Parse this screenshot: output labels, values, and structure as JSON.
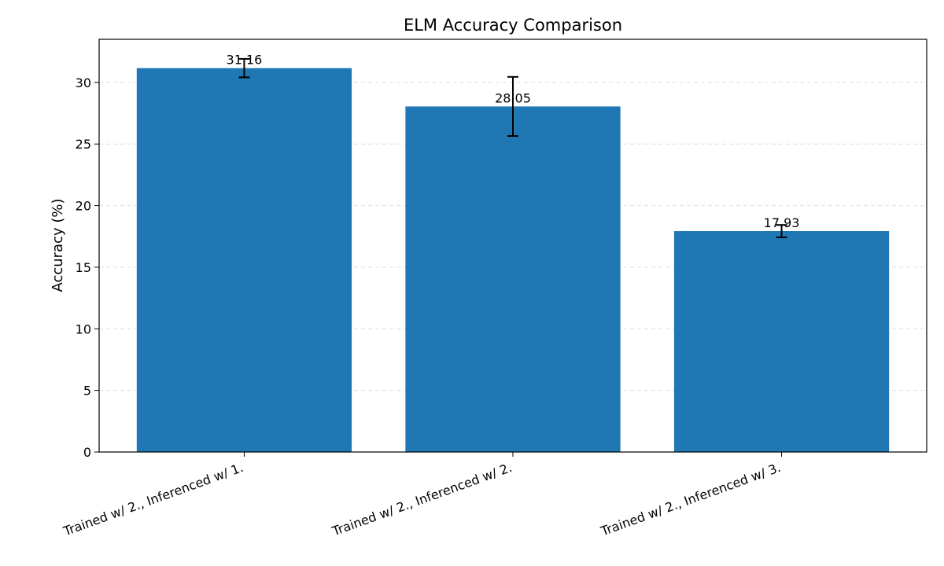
{
  "chart_data": {
    "type": "bar",
    "title": "ELM Accuracy Comparison",
    "xlabel": "",
    "ylabel": "Accuracy (%)",
    "categories": [
      "Trained w/ 2., Inferenced w/ 1.",
      "Trained w/ 2., Inferenced w/ 2.",
      "Trained w/ 2., Inferenced w/ 3."
    ],
    "values": [
      31.16,
      28.05,
      17.93
    ],
    "errors": [
      0.75,
      2.4,
      0.5
    ],
    "value_labels": [
      "31.16",
      "28.05",
      "17.93"
    ],
    "ylim": [
      0,
      33.5
    ],
    "yticks": [
      0,
      5,
      10,
      15,
      20,
      25,
      30
    ],
    "grid": "horizontal dashed",
    "legend": "none",
    "bar_color": "#1f77b4",
    "error_color": "#000000",
    "grid_color": "#dddddd"
  }
}
